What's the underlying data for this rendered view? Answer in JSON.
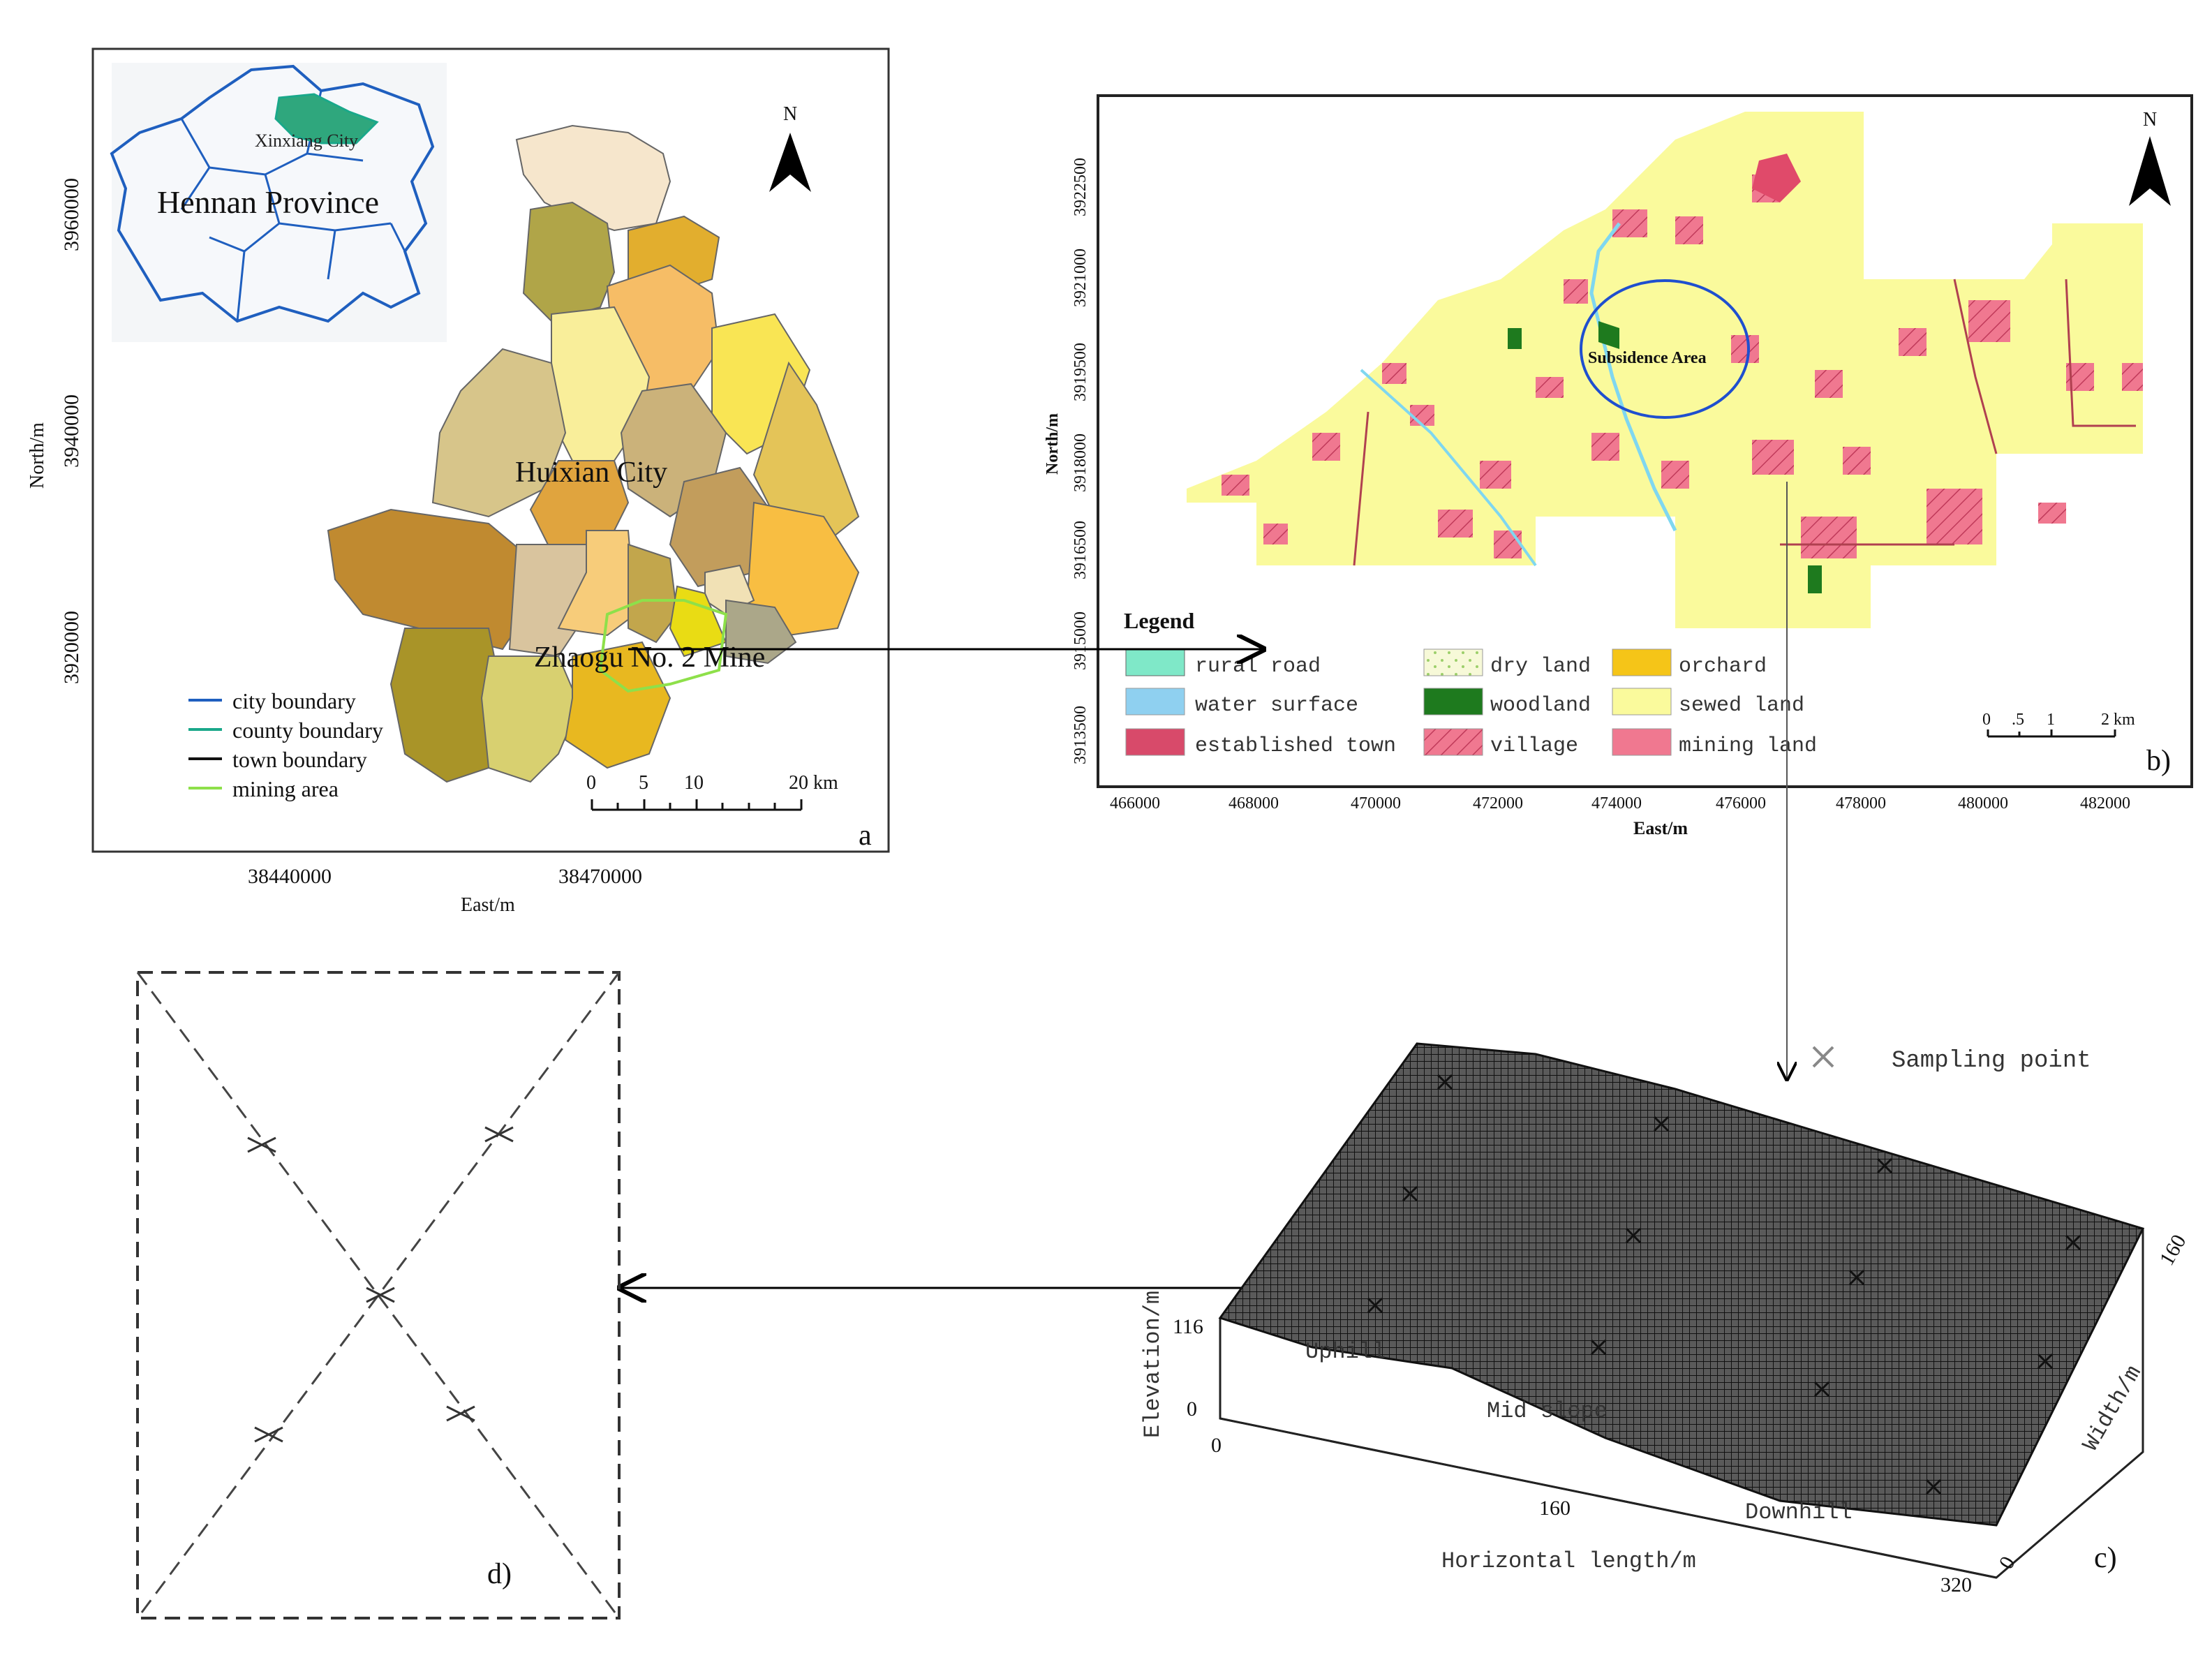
{
  "panel_a": {
    "north": "N",
    "province_label": "Hennan Province",
    "city_inset_label": "Xinxiang City",
    "city_label": "Huixian City",
    "mine_label": "Zhaogu No. 2 Mine",
    "y_ticks": [
      "3960000",
      "3940000",
      "3920000"
    ],
    "x_ticks": [
      "38440000",
      "38470000"
    ],
    "y_axis_label": "North/m",
    "x_axis_label": "East/m",
    "legend": [
      {
        "label": "city boundary",
        "color": "#1f5fbf"
      },
      {
        "label": "county boundary",
        "color": "#1aa88a"
      },
      {
        "label": "town boundary",
        "color": "#111111"
      },
      {
        "label": "mining area",
        "color": "#8ee04a"
      }
    ],
    "scale_ticks": [
      "0",
      "5",
      "10",
      "20 km"
    ],
    "panel_letter": "a"
  },
  "panel_b": {
    "north": "N",
    "subsidence_label": "Subsidence Area",
    "legend_title": "Legend",
    "legend": [
      {
        "label": "rural road",
        "color": "#7fe8c8"
      },
      {
        "label": "dry land",
        "color": "#f4f7c8"
      },
      {
        "label": "orchard",
        "color": "#f5c518"
      },
      {
        "label": "water surface",
        "color": "#8fd0f0"
      },
      {
        "label": "woodland",
        "color": "#1e7a1e"
      },
      {
        "label": "sewed land",
        "color": "#fafa9c"
      },
      {
        "label": "established town",
        "color": "#d84a6a"
      },
      {
        "label": "village",
        "color": "#e0607a"
      },
      {
        "label": "mining land",
        "color": "#f07890"
      }
    ],
    "y_ticks": [
      "3922500",
      "3921000",
      "3919500",
      "3918000",
      "3916500",
      "3915000",
      "3913500"
    ],
    "x_ticks": [
      "466000",
      "468000",
      "470000",
      "472000",
      "474000",
      "476000",
      "478000",
      "480000",
      "482000"
    ],
    "y_axis_label": "North/m",
    "x_axis_label": "East/m",
    "scale_ticks": [
      "0",
      ".5",
      "1",
      "2 km"
    ],
    "panel_letter": "b)"
  },
  "panel_c": {
    "sampling_legend": "Sampling point",
    "elevation_label": "Elevation/m",
    "width_label": "Width/m",
    "length_label": "Horizontal length/m",
    "elev_ticks": [
      "116",
      "0"
    ],
    "length_ticks": [
      "0",
      "160",
      "320"
    ],
    "width_ticks": [
      "0",
      "160"
    ],
    "slope_labels": [
      "Uphill",
      "Mid slope",
      "Downhill"
    ],
    "panel_letter": "c)"
  },
  "panel_d": {
    "panel_letter": "d)"
  }
}
